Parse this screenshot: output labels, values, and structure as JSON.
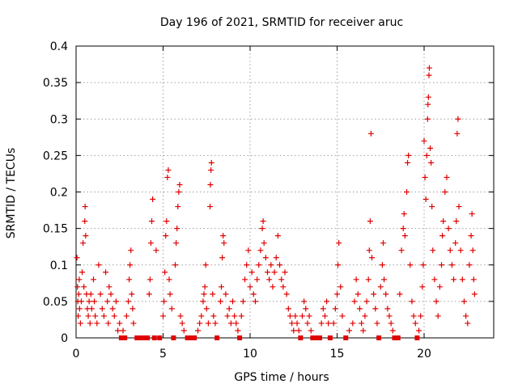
{
  "chart_data": {
    "type": "scatter",
    "title": "Day 196 of 2021, SRMTID for receiver aruc",
    "xlabel": "GPS time / hours",
    "ylabel": "SRMTID / TECUs",
    "xlim": [
      0,
      24
    ],
    "ylim": [
      0,
      0.4
    ],
    "xticks": [
      0,
      5,
      10,
      15,
      20
    ],
    "xtick_labels": [
      "0",
      "5",
      "10",
      "15",
      "20"
    ],
    "yticks": [
      0,
      0.05,
      0.1,
      0.15,
      0.2,
      0.25,
      0.3,
      0.35,
      0.4
    ],
    "ytick_labels": [
      "0",
      "0.05",
      "0.1",
      "0.15",
      "0.2",
      "0.25",
      "0.3",
      "0.35",
      "0.4"
    ],
    "grid": true,
    "marker_color": "#e00000",
    "series": [
      {
        "name": "SRMTID",
        "marker": "plus",
        "points": [
          [
            0.05,
            0.11
          ],
          [
            0.08,
            0.07
          ],
          [
            0.1,
            0.05
          ],
          [
            0.12,
            0.03
          ],
          [
            0.15,
            0.06
          ],
          [
            0.18,
            0.08
          ],
          [
            0.2,
            0.04
          ],
          [
            0.25,
            0.02
          ],
          [
            0.3,
            0.05
          ],
          [
            0.35,
            0.09
          ],
          [
            0.4,
            0.13
          ],
          [
            0.45,
            0.07
          ],
          [
            0.5,
            0.16
          ],
          [
            0.52,
            0.18
          ],
          [
            0.55,
            0.14
          ],
          [
            0.6,
            0.06
          ],
          [
            0.65,
            0.04
          ],
          [
            0.7,
            0.03
          ],
          [
            0.75,
            0.05
          ],
          [
            0.8,
            0.02
          ],
          [
            0.85,
            0.06
          ],
          [
            0.9,
            0.04
          ],
          [
            1.0,
            0.08
          ],
          [
            1.05,
            0.05
          ],
          [
            1.1,
            0.03
          ],
          [
            1.2,
            0.02
          ],
          [
            1.3,
            0.1
          ],
          [
            1.4,
            0.06
          ],
          [
            1.5,
            0.04
          ],
          [
            1.6,
            0.03
          ],
          [
            1.7,
            0.09
          ],
          [
            1.8,
            0.05
          ],
          [
            1.85,
            0.02
          ],
          [
            1.9,
            0.07
          ],
          [
            2.0,
            0.06
          ],
          [
            2.1,
            0.04
          ],
          [
            2.2,
            0.03
          ],
          [
            2.3,
            0.05
          ],
          [
            2.4,
            0.01
          ],
          [
            2.5,
            0.02
          ],
          [
            2.6,
            0.0
          ],
          [
            2.7,
            0.01
          ],
          [
            2.8,
            0.0
          ],
          [
            2.9,
            0.03
          ],
          [
            3.0,
            0.05
          ],
          [
            3.05,
            0.08
          ],
          [
            3.1,
            0.1
          ],
          [
            3.15,
            0.12
          ],
          [
            3.2,
            0.06
          ],
          [
            3.25,
            0.04
          ],
          [
            3.3,
            0.02
          ],
          [
            3.5,
            0.0
          ],
          [
            3.7,
            0.0
          ],
          [
            3.9,
            0.0
          ],
          [
            4.1,
            0.0
          ],
          [
            4.2,
            0.06
          ],
          [
            4.25,
            0.08
          ],
          [
            4.3,
            0.13
          ],
          [
            4.35,
            0.16
          ],
          [
            4.4,
            0.19
          ],
          [
            4.5,
            0.0
          ],
          [
            4.6,
            0.12
          ],
          [
            4.8,
            0.0
          ],
          [
            5.0,
            0.03
          ],
          [
            5.05,
            0.05
          ],
          [
            5.1,
            0.09
          ],
          [
            5.15,
            0.14
          ],
          [
            5.2,
            0.16
          ],
          [
            5.25,
            0.22
          ],
          [
            5.3,
            0.23
          ],
          [
            5.35,
            0.08
          ],
          [
            5.4,
            0.06
          ],
          [
            5.5,
            0.04
          ],
          [
            5.6,
            0.0
          ],
          [
            5.7,
            0.1
          ],
          [
            5.75,
            0.13
          ],
          [
            5.8,
            0.15
          ],
          [
            5.85,
            0.18
          ],
          [
            5.9,
            0.2
          ],
          [
            5.95,
            0.21
          ],
          [
            6.0,
            0.03
          ],
          [
            6.1,
            0.02
          ],
          [
            6.2,
            0.01
          ],
          [
            6.4,
            0.0
          ],
          [
            6.6,
            0.0
          ],
          [
            6.8,
            0.0
          ],
          [
            7.0,
            0.01
          ],
          [
            7.1,
            0.02
          ],
          [
            7.2,
            0.03
          ],
          [
            7.3,
            0.05
          ],
          [
            7.35,
            0.06
          ],
          [
            7.4,
            0.07
          ],
          [
            7.45,
            0.1
          ],
          [
            7.5,
            0.04
          ],
          [
            7.6,
            0.02
          ],
          [
            7.7,
            0.18
          ],
          [
            7.72,
            0.21
          ],
          [
            7.75,
            0.23
          ],
          [
            7.78,
            0.24
          ],
          [
            7.85,
            0.06
          ],
          [
            7.9,
            0.03
          ],
          [
            8.0,
            0.02
          ],
          [
            8.1,
            0.0
          ],
          [
            8.3,
            0.05
          ],
          [
            8.35,
            0.07
          ],
          [
            8.4,
            0.11
          ],
          [
            8.45,
            0.14
          ],
          [
            8.5,
            0.13
          ],
          [
            8.6,
            0.06
          ],
          [
            8.7,
            0.03
          ],
          [
            8.8,
            0.04
          ],
          [
            8.9,
            0.02
          ],
          [
            9.0,
            0.05
          ],
          [
            9.1,
            0.03
          ],
          [
            9.2,
            0.02
          ],
          [
            9.3,
            0.01
          ],
          [
            9.4,
            0.0
          ],
          [
            9.5,
            0.03
          ],
          [
            9.6,
            0.05
          ],
          [
            9.7,
            0.08
          ],
          [
            9.8,
            0.1
          ],
          [
            9.9,
            0.12
          ],
          [
            10.0,
            0.07
          ],
          [
            10.1,
            0.09
          ],
          [
            10.2,
            0.06
          ],
          [
            10.3,
            0.05
          ],
          [
            10.4,
            0.08
          ],
          [
            10.5,
            0.1
          ],
          [
            10.6,
            0.12
          ],
          [
            10.7,
            0.15
          ],
          [
            10.75,
            0.16
          ],
          [
            10.8,
            0.13
          ],
          [
            10.9,
            0.11
          ],
          [
            11.0,
            0.09
          ],
          [
            11.1,
            0.08
          ],
          [
            11.2,
            0.1
          ],
          [
            11.3,
            0.07
          ],
          [
            11.4,
            0.09
          ],
          [
            11.5,
            0.11
          ],
          [
            11.6,
            0.14
          ],
          [
            11.7,
            0.1
          ],
          [
            11.8,
            0.08
          ],
          [
            11.9,
            0.07
          ],
          [
            12.0,
            0.09
          ],
          [
            12.1,
            0.06
          ],
          [
            12.2,
            0.04
          ],
          [
            12.3,
            0.03
          ],
          [
            12.4,
            0.02
          ],
          [
            12.5,
            0.01
          ],
          [
            12.6,
            0.03
          ],
          [
            12.7,
            0.02
          ],
          [
            12.8,
            0.01
          ],
          [
            12.9,
            0.0
          ],
          [
            13.0,
            0.03
          ],
          [
            13.1,
            0.05
          ],
          [
            13.2,
            0.04
          ],
          [
            13.3,
            0.02
          ],
          [
            13.4,
            0.03
          ],
          [
            13.5,
            0.01
          ],
          [
            13.6,
            0.0
          ],
          [
            13.8,
            0.0
          ],
          [
            14.0,
            0.0
          ],
          [
            14.1,
            0.02
          ],
          [
            14.2,
            0.04
          ],
          [
            14.3,
            0.03
          ],
          [
            14.4,
            0.05
          ],
          [
            14.5,
            0.02
          ],
          [
            14.6,
            0.0
          ],
          [
            14.8,
            0.02
          ],
          [
            14.9,
            0.04
          ],
          [
            15.0,
            0.06
          ],
          [
            15.05,
            0.1
          ],
          [
            15.1,
            0.13
          ],
          [
            15.2,
            0.07
          ],
          [
            15.3,
            0.03
          ],
          [
            15.5,
            0.0
          ],
          [
            15.7,
            0.01
          ],
          [
            15.9,
            0.02
          ],
          [
            16.0,
            0.05
          ],
          [
            16.1,
            0.08
          ],
          [
            16.2,
            0.06
          ],
          [
            16.3,
            0.04
          ],
          [
            16.4,
            0.02
          ],
          [
            16.5,
            0.01
          ],
          [
            16.6,
            0.03
          ],
          [
            16.7,
            0.05
          ],
          [
            16.8,
            0.08
          ],
          [
            16.85,
            0.12
          ],
          [
            16.9,
            0.16
          ],
          [
            16.95,
            0.28
          ],
          [
            17.0,
            0.11
          ],
          [
            17.1,
            0.06
          ],
          [
            17.2,
            0.04
          ],
          [
            17.3,
            0.02
          ],
          [
            17.4,
            0.0
          ],
          [
            17.5,
            0.07
          ],
          [
            17.6,
            0.1
          ],
          [
            17.65,
            0.13
          ],
          [
            17.7,
            0.08
          ],
          [
            17.8,
            0.06
          ],
          [
            17.9,
            0.04
          ],
          [
            18.0,
            0.03
          ],
          [
            18.1,
            0.02
          ],
          [
            18.2,
            0.01
          ],
          [
            18.3,
            0.0
          ],
          [
            18.5,
            0.0
          ],
          [
            18.6,
            0.06
          ],
          [
            18.7,
            0.12
          ],
          [
            18.8,
            0.15
          ],
          [
            18.85,
            0.17
          ],
          [
            18.9,
            0.14
          ],
          [
            19.0,
            0.2
          ],
          [
            19.05,
            0.24
          ],
          [
            19.1,
            0.25
          ],
          [
            19.2,
            0.1
          ],
          [
            19.3,
            0.05
          ],
          [
            19.4,
            0.03
          ],
          [
            19.5,
            0.02
          ],
          [
            19.6,
            0.0
          ],
          [
            19.7,
            0.01
          ],
          [
            19.8,
            0.03
          ],
          [
            19.9,
            0.07
          ],
          [
            19.95,
            0.1
          ],
          [
            20.0,
            0.27
          ],
          [
            20.05,
            0.22
          ],
          [
            20.1,
            0.19
          ],
          [
            20.15,
            0.25
          ],
          [
            20.2,
            0.3
          ],
          [
            20.22,
            0.32
          ],
          [
            20.25,
            0.33
          ],
          [
            20.28,
            0.36
          ],
          [
            20.3,
            0.37
          ],
          [
            20.35,
            0.26
          ],
          [
            20.4,
            0.24
          ],
          [
            20.45,
            0.18
          ],
          [
            20.5,
            0.12
          ],
          [
            20.6,
            0.08
          ],
          [
            20.7,
            0.05
          ],
          [
            20.8,
            0.03
          ],
          [
            20.9,
            0.07
          ],
          [
            21.0,
            0.1
          ],
          [
            21.05,
            0.14
          ],
          [
            21.1,
            0.16
          ],
          [
            21.2,
            0.2
          ],
          [
            21.3,
            0.22
          ],
          [
            21.4,
            0.15
          ],
          [
            21.5,
            0.12
          ],
          [
            21.6,
            0.1
          ],
          [
            21.7,
            0.08
          ],
          [
            21.8,
            0.13
          ],
          [
            21.85,
            0.16
          ],
          [
            21.9,
            0.28
          ],
          [
            21.95,
            0.3
          ],
          [
            22.0,
            0.18
          ],
          [
            22.1,
            0.12
          ],
          [
            22.2,
            0.08
          ],
          [
            22.3,
            0.05
          ],
          [
            22.4,
            0.03
          ],
          [
            22.5,
            0.02
          ],
          [
            22.6,
            0.1
          ],
          [
            22.7,
            0.14
          ],
          [
            22.75,
            0.17
          ],
          [
            22.8,
            0.12
          ],
          [
            22.85,
            0.08
          ],
          [
            22.9,
            0.06
          ]
        ]
      }
    ]
  }
}
